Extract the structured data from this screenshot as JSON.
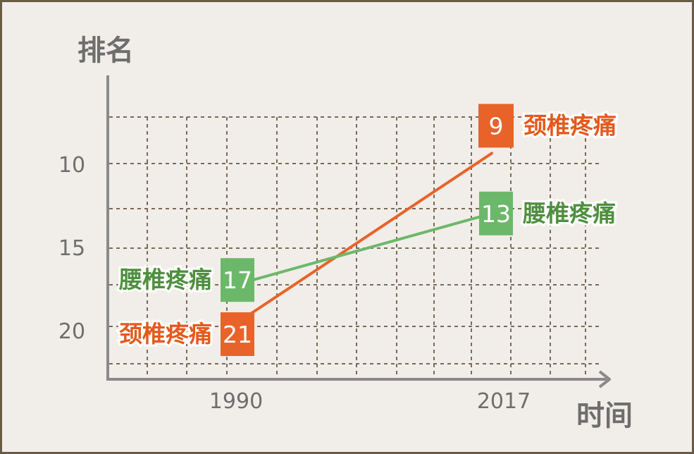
{
  "chart_data": {
    "type": "line",
    "ylabel": "排名",
    "xlabel": "时间",
    "x": [
      "1990",
      "2017"
    ],
    "yticks": [
      "10",
      "15",
      "20"
    ],
    "y_inverted": true,
    "grid": true,
    "series": [
      {
        "name": "颈椎疼痛",
        "values": [
          21,
          9
        ],
        "color": "#e8632a"
      },
      {
        "name": "腰椎疼痛",
        "values": [
          17,
          13
        ],
        "color": "#6cb86a"
      }
    ],
    "series_label_colors": {
      "颈椎疼痛": "#e35a1d",
      "腰椎疼痛": "#4e8f3f"
    }
  }
}
